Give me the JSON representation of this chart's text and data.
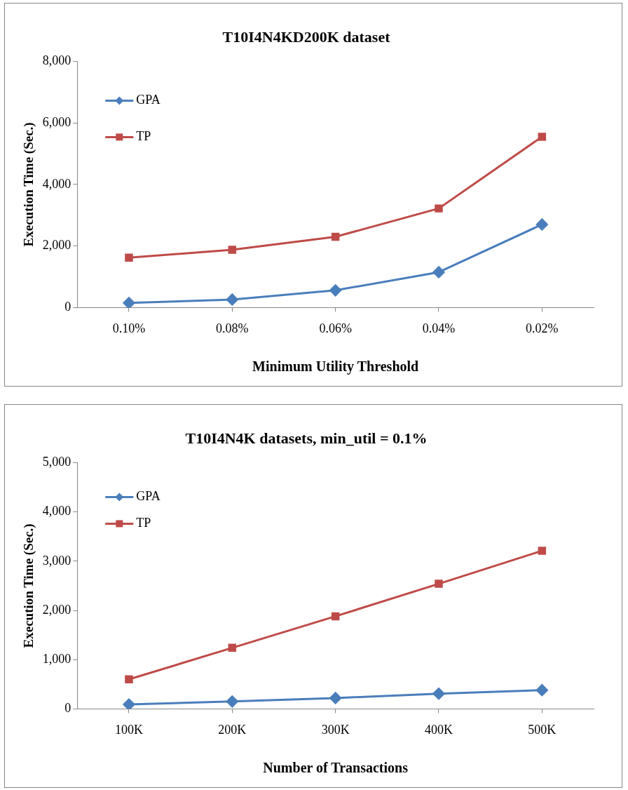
{
  "chart_data": [
    {
      "type": "line",
      "title": "T10I4N4KD200K dataset",
      "xlabel": "Minimum Utility Threshold",
      "ylabel": "Execution Time (Sec.)",
      "categories": [
        "0.10%",
        "0.08%",
        "0.06%",
        "0.04%",
        "0.02%"
      ],
      "series": [
        {
          "name": "GPA",
          "color": "#4a7ebb",
          "marker": "diamond",
          "values": [
            150,
            260,
            560,
            1150,
            2700
          ]
        },
        {
          "name": "TP",
          "color": "#be4b48",
          "marker": "square",
          "values": [
            1620,
            1880,
            2300,
            3220,
            5550
          ]
        }
      ],
      "ylim": [
        0,
        8000
      ],
      "yticks": [
        0,
        {
          "value": 2000,
          "label": "2,000"
        },
        {
          "value": 4000,
          "label": "4,000"
        },
        {
          "value": 6000,
          "label": "6,000"
        },
        {
          "value": 8000,
          "label": "8,000"
        }
      ],
      "grid": false,
      "legend": "top left"
    },
    {
      "type": "line",
      "title": "T10I4N4K datasets, min_util = 0.1%",
      "xlabel": "Number of Transactions",
      "ylabel": "Execution Time (Sec.)",
      "categories": [
        "100K",
        "200K",
        "300K",
        "400K",
        "500K"
      ],
      "series": [
        {
          "name": "GPA",
          "color": "#4a7ebb",
          "marker": "diamond",
          "values": [
            90,
            150,
            220,
            310,
            380
          ]
        },
        {
          "name": "TP",
          "color": "#be4b48",
          "marker": "square",
          "values": [
            600,
            1240,
            1880,
            2540,
            3210
          ]
        }
      ],
      "ylim": [
        0,
        5000
      ],
      "yticks": [
        0,
        {
          "value": 1000,
          "label": "1,000"
        },
        {
          "value": 2000,
          "label": "2,000"
        },
        {
          "value": 3000,
          "label": "3,000"
        },
        {
          "value": 4000,
          "label": "4,000"
        },
        {
          "value": 5000,
          "label": "5,000"
        }
      ],
      "grid": false,
      "legend": "top left"
    }
  ]
}
